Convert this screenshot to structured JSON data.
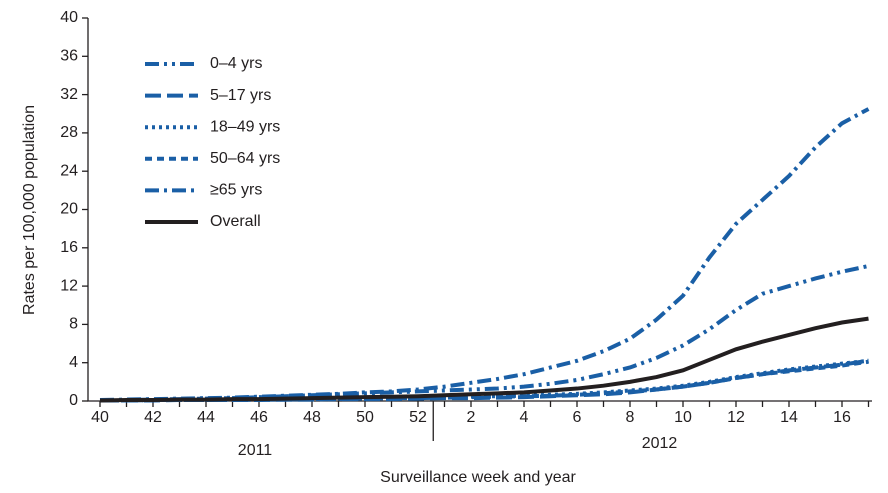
{
  "chart_data": {
    "type": "line",
    "x_label": "Surveillance week and year",
    "y_label": "Rates per 100,000 population",
    "categories": [
      40,
      null,
      42,
      null,
      44,
      null,
      46,
      null,
      48,
      null,
      50,
      null,
      52,
      null,
      2,
      null,
      4,
      null,
      6,
      null,
      8,
      null,
      10,
      null,
      12,
      null,
      14,
      null,
      16,
      null
    ],
    "year_labels": [
      "2011",
      "2012"
    ],
    "ylim": [
      0,
      40
    ],
    "yticks": [
      0,
      4,
      8,
      12,
      16,
      20,
      24,
      28,
      32,
      36,
      40
    ],
    "legend": "upper left",
    "series": [
      {
        "name": "0–4 yrs",
        "color": "#1a5fa6",
        "linestyle": "dashdotdot",
        "values": [
          0.1,
          0.1,
          0.15,
          0.2,
          0.25,
          0.3,
          0.4,
          0.5,
          0.6,
          0.7,
          0.8,
          0.9,
          1.0,
          1.1,
          1.2,
          1.3,
          1.5,
          1.8,
          2.2,
          2.8,
          3.5,
          4.5,
          5.8,
          7.5,
          9.5,
          11.2,
          12,
          12.8,
          13.5,
          14.1
        ]
      },
      {
        "name": "5–17 yrs",
        "color": "#1a5fa6",
        "linestyle": "longdash",
        "values": [
          0.05,
          0.05,
          0.05,
          0.1,
          0.1,
          0.1,
          0.1,
          0.15,
          0.15,
          0.2,
          0.2,
          0.2,
          0.25,
          0.3,
          0.3,
          0.35,
          0.4,
          0.5,
          0.6,
          0.7,
          0.9,
          1.2,
          1.5,
          1.9,
          2.4,
          2.8,
          3.2,
          3.5,
          3.8,
          4.2
        ]
      },
      {
        "name": "18–49 yrs",
        "color": "#1a5fa6",
        "linestyle": "dotted",
        "values": [
          0.05,
          0.05,
          0.1,
          0.1,
          0.1,
          0.15,
          0.15,
          0.2,
          0.2,
          0.25,
          0.25,
          0.3,
          0.35,
          0.4,
          0.45,
          0.5,
          0.55,
          0.65,
          0.75,
          0.9,
          1.1,
          1.3,
          1.6,
          2.0,
          2.5,
          2.9,
          3.3,
          3.6,
          3.9,
          4.2
        ]
      },
      {
        "name": "50–64 yrs",
        "color": "#1a5fa6",
        "linestyle": "dashed",
        "values": [
          0.05,
          0.05,
          0.1,
          0.1,
          0.1,
          0.1,
          0.15,
          0.15,
          0.2,
          0.2,
          0.25,
          0.3,
          0.3,
          0.35,
          0.4,
          0.45,
          0.5,
          0.55,
          0.65,
          0.8,
          1.0,
          1.2,
          1.5,
          1.9,
          2.4,
          2.8,
          3.1,
          3.4,
          3.7,
          4.1
        ]
      },
      {
        "name": "≥65 yrs",
        "color": "#1a5fa6",
        "linestyle": "dashdot",
        "values": [
          0.1,
          0.15,
          0.2,
          0.25,
          0.3,
          0.35,
          0.45,
          0.55,
          0.65,
          0.75,
          0.9,
          1.0,
          1.2,
          1.5,
          1.9,
          2.3,
          2.8,
          3.5,
          4.2,
          5.2,
          6.5,
          8.5,
          11,
          15,
          18.5,
          21,
          23.5,
          26.5,
          29,
          30.5
        ]
      },
      {
        "name": "Overall",
        "color": "#231f20",
        "linestyle": "solid",
        "values": [
          0.05,
          0.1,
          0.1,
          0.15,
          0.15,
          0.2,
          0.2,
          0.25,
          0.3,
          0.35,
          0.4,
          0.45,
          0.5,
          0.6,
          0.7,
          0.8,
          0.9,
          1.1,
          1.3,
          1.6,
          2.0,
          2.5,
          3.2,
          4.3,
          5.4,
          6.2,
          6.9,
          7.6,
          8.2,
          8.6
        ]
      }
    ]
  }
}
